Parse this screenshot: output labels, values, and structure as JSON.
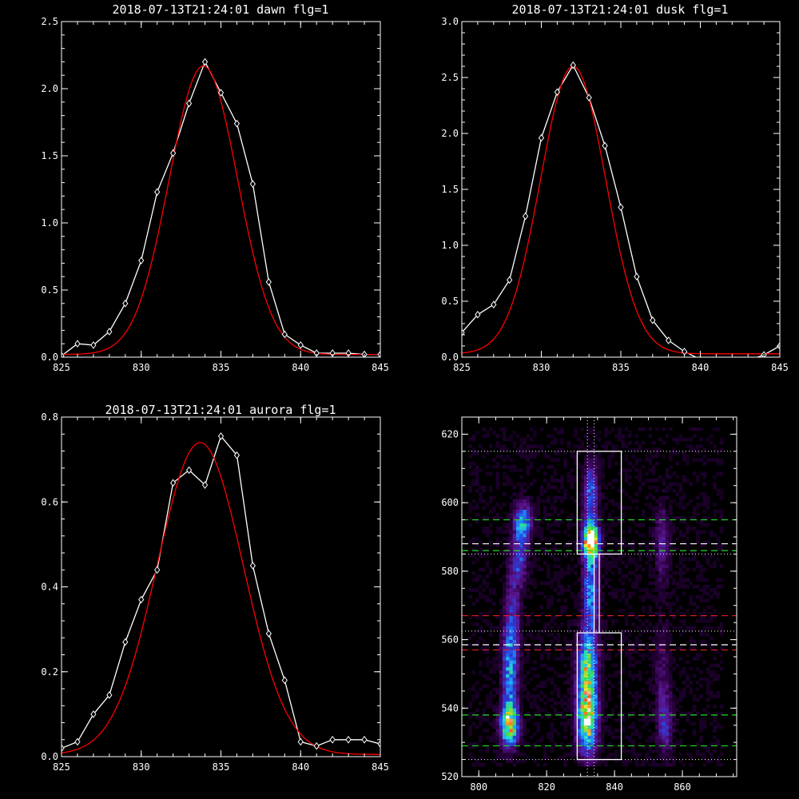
{
  "colors": {
    "background": "#000000",
    "axis": "#ffffff",
    "data_line": "#ffffff",
    "fit_line": "#ff0000",
    "box": "#ffffff",
    "dash_green": "#22dd22",
    "dash_red": "#dd2222",
    "dash_white": "#ffffff",
    "dotted": "#ffffff"
  },
  "chart_data": [
    {
      "id": "dawn",
      "type": "line",
      "title": "2018-07-13T21:24:01 dawn flg=1",
      "xlabel": "",
      "ylabel": "",
      "xlim": [
        825,
        845
      ],
      "ylim": [
        0,
        2.5
      ],
      "xticks": [
        825,
        830,
        835,
        840,
        845
      ],
      "yticks": [
        0.0,
        0.5,
        1.0,
        1.5,
        2.0,
        2.5
      ],
      "xtick_labels": [
        "825",
        "830",
        "835",
        "840",
        "845"
      ],
      "ytick_labels": [
        "0.0",
        "0.5",
        "1.0",
        "1.5",
        "2.0",
        "2.5"
      ],
      "series": [
        {
          "kind": "data",
          "marker": "diamond",
          "x": [
            825,
            826,
            827,
            828,
            829,
            830,
            831,
            832,
            833,
            834,
            835,
            836,
            837,
            838,
            839,
            840,
            841,
            842,
            843,
            844,
            845
          ],
          "y": [
            0.01,
            0.1,
            0.09,
            0.19,
            0.4,
            0.72,
            1.23,
            1.52,
            1.89,
            2.2,
            1.97,
            1.74,
            1.29,
            0.56,
            0.17,
            0.09,
            0.03,
            0.03,
            0.03,
            0.02,
            0.02
          ]
        },
        {
          "kind": "fit",
          "model": "gaussian",
          "amplitude": 2.15,
          "center": 833.9,
          "sigma": 2.15,
          "offset": 0.02
        }
      ]
    },
    {
      "id": "dusk",
      "type": "line",
      "title": "2018-07-13T21:24:01 dusk flg=1",
      "xlabel": "",
      "ylabel": "",
      "xlim": [
        825,
        845
      ],
      "ylim": [
        0,
        3.0
      ],
      "xticks": [
        825,
        830,
        835,
        840,
        845
      ],
      "yticks": [
        0.0,
        0.5,
        1.0,
        1.5,
        2.0,
        2.5,
        3.0
      ],
      "xtick_labels": [
        "825",
        "830",
        "835",
        "840",
        "845"
      ],
      "ytick_labels": [
        "0.0",
        "0.5",
        "1.0",
        "1.5",
        "2.0",
        "2.5",
        "3.0"
      ],
      "series": [
        {
          "kind": "data",
          "marker": "diamond",
          "x": [
            825,
            826,
            827,
            828,
            829,
            830,
            831,
            832,
            833,
            834,
            835,
            836,
            837,
            838,
            839,
            840,
            841,
            842,
            843,
            844,
            845
          ],
          "y": [
            0.22,
            0.38,
            0.47,
            0.69,
            1.26,
            1.96,
            2.37,
            2.61,
            2.32,
            1.89,
            1.34,
            0.72,
            0.33,
            0.15,
            0.05,
            -0.02,
            -0.04,
            -0.03,
            -0.03,
            0.02,
            0.1
          ]
        },
        {
          "kind": "fit",
          "model": "gaussian",
          "amplitude": 2.57,
          "center": 832.0,
          "sigma": 2.05,
          "offset": 0.03
        }
      ]
    },
    {
      "id": "aurora",
      "type": "line",
      "title": "2018-07-13T21:24:01 aurora flg=1",
      "xlabel": "",
      "ylabel": "",
      "xlim": [
        825,
        845
      ],
      "ylim": [
        0,
        0.8
      ],
      "xticks": [
        825,
        830,
        835,
        840,
        845
      ],
      "yticks": [
        0.0,
        0.2,
        0.4,
        0.6,
        0.8
      ],
      "xtick_labels": [
        "825",
        "830",
        "835",
        "840",
        "845"
      ],
      "ytick_labels": [
        "0.0",
        "0.2",
        "0.4",
        "0.6",
        "0.8"
      ],
      "series": [
        {
          "kind": "data",
          "marker": "diamond",
          "x": [
            825,
            826,
            827,
            828,
            829,
            830,
            831,
            832,
            833,
            834,
            835,
            836,
            837,
            838,
            839,
            840,
            841,
            842,
            843,
            844,
            845
          ],
          "y": [
            0.02,
            0.035,
            0.1,
            0.145,
            0.27,
            0.37,
            0.44,
            0.645,
            0.675,
            0.64,
            0.755,
            0.71,
            0.45,
            0.29,
            0.18,
            0.035,
            0.025,
            0.04,
            0.04,
            0.04,
            0.03
          ]
        },
        {
          "kind": "fit",
          "model": "gaussian",
          "amplitude": 0.735,
          "center": 833.7,
          "sigma": 2.7,
          "offset": 0.005
        }
      ]
    },
    {
      "id": "image",
      "type": "heatmap",
      "title": "",
      "xlabel": "",
      "ylabel": "",
      "xlim": [
        795,
        876
      ],
      "ylim": [
        520,
        625
      ],
      "xticks": [
        800,
        820,
        840,
        860
      ],
      "yticks": [
        520,
        540,
        560,
        580,
        600,
        620
      ],
      "xtick_labels": [
        "800",
        "820",
        "840",
        "860"
      ],
      "ytick_labels": [
        "520",
        "540",
        "560",
        "580",
        "600",
        "620"
      ],
      "sources": [
        {
          "x": 809,
          "y": 535,
          "sx": 1.8,
          "sy": 4,
          "amp": 0.75
        },
        {
          "x": 809,
          "y": 550,
          "sx": 1.5,
          "sy": 9,
          "amp": 0.4
        },
        {
          "x": 813,
          "y": 594,
          "sx": 1.8,
          "sy": 4,
          "amp": 0.5
        },
        {
          "x": 812,
          "y": 583,
          "sx": 1.5,
          "sy": 5,
          "amp": 0.3
        },
        {
          "x": 810,
          "y": 565,
          "sx": 1.5,
          "sy": 12,
          "amp": 0.25
        },
        {
          "x": 832,
          "y": 537,
          "sx": 2,
          "sy": 7,
          "amp": 0.82
        },
        {
          "x": 832,
          "y": 552,
          "sx": 2,
          "sy": 7,
          "amp": 0.6
        },
        {
          "x": 833,
          "y": 589,
          "sx": 1.6,
          "sy": 3.5,
          "amp": 1.0
        },
        {
          "x": 833,
          "y": 575,
          "sx": 1.5,
          "sy": 10,
          "amp": 0.45
        },
        {
          "x": 833,
          "y": 603,
          "sx": 1.5,
          "sy": 6,
          "amp": 0.35
        },
        {
          "x": 855,
          "y": 535,
          "sx": 1.5,
          "sy": 6,
          "amp": 0.25
        },
        {
          "x": 854,
          "y": 550,
          "sx": 1.5,
          "sy": 10,
          "amp": 0.15
        },
        {
          "x": 854,
          "y": 588,
          "sx": 1.5,
          "sy": 8,
          "amp": 0.2
        }
      ],
      "boxes": [
        {
          "x": [
            829,
            842
          ],
          "y": [
            525,
            562
          ]
        },
        {
          "x": [
            829,
            842
          ],
          "y": [
            585,
            615
          ]
        }
      ],
      "vlines_dotted": [
        832,
        834
      ],
      "hlines_dotted": [
        525,
        562.5,
        585,
        615
      ],
      "hlines_dashed": [
        {
          "y": 529,
          "color": "green"
        },
        {
          "y": 538,
          "color": "green"
        },
        {
          "y": 557,
          "color": "red"
        },
        {
          "y": 558.5,
          "color": "white"
        },
        {
          "y": 567,
          "color": "red"
        },
        {
          "y": 586,
          "color": "green"
        },
        {
          "y": 588,
          "color": "white"
        },
        {
          "y": 595,
          "color": "green"
        }
      ]
    }
  ]
}
